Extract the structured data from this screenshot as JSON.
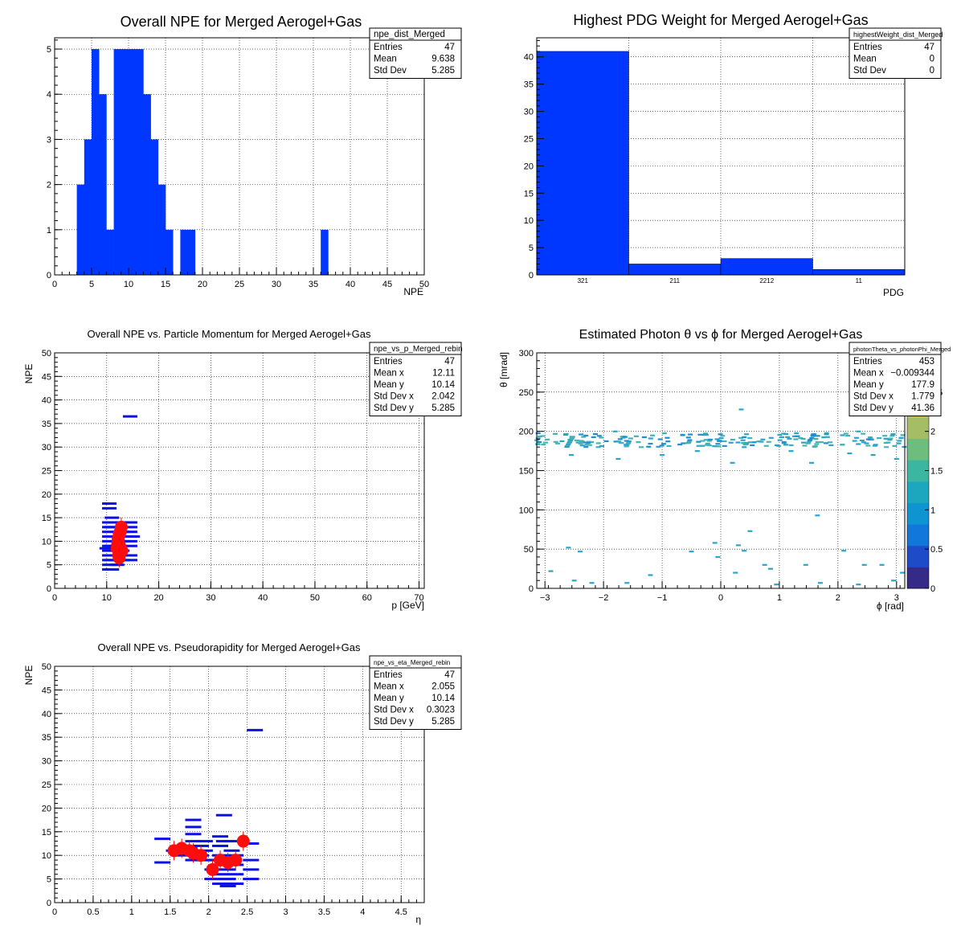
{
  "chart_data": [
    {
      "id": "p1",
      "type": "bar",
      "title": "Overall NPE for Merged Aerogel+Gas",
      "xlabel": "NPE",
      "ylabel": "",
      "xlim": [
        0,
        50
      ],
      "ylim": [
        0,
        5.25
      ],
      "xticks": [
        "0",
        "5",
        "10",
        "15",
        "20",
        "25",
        "30",
        "35",
        "40",
        "45",
        "50"
      ],
      "yticks": [
        "0",
        "1",
        "2",
        "3",
        "4",
        "5"
      ],
      "grid": true,
      "bar_color": "#0037ff",
      "bins": [
        [
          3,
          4,
          2
        ],
        [
          4,
          5,
          3
        ],
        [
          5,
          6,
          5
        ],
        [
          6,
          7,
          4
        ],
        [
          7,
          8,
          1
        ],
        [
          8,
          9,
          5
        ],
        [
          9,
          10,
          5
        ],
        [
          10,
          11,
          5
        ],
        [
          11,
          12,
          5
        ],
        [
          12,
          13,
          4
        ],
        [
          13,
          14,
          3
        ],
        [
          14,
          15,
          2
        ],
        [
          15,
          16,
          1
        ],
        [
          17,
          19,
          1
        ],
        [
          36,
          37,
          1
        ]
      ],
      "stats": {
        "name": "npe_dist_Merged",
        "rows": [
          [
            "Entries",
            "47"
          ],
          [
            "Mean",
            "9.638"
          ],
          [
            "Std Dev",
            "5.285"
          ]
        ]
      }
    },
    {
      "id": "p2",
      "type": "bar",
      "title": "Highest PDG Weight for Merged Aerogel+Gas",
      "xlabel": "PDG",
      "ylabel": "",
      "ylim": [
        0,
        43.5
      ],
      "categories": [
        "321",
        "211",
        "2212",
        "11"
      ],
      "values": [
        41,
        2,
        3,
        1
      ],
      "yticks": [
        "0",
        "5",
        "10",
        "15",
        "20",
        "25",
        "30",
        "35",
        "40"
      ],
      "grid": true,
      "bar_color": "#0037ff",
      "stats": {
        "name": "highestWeight_dist_Merged",
        "rows": [
          [
            "Entries",
            "47"
          ],
          [
            "Mean",
            "0"
          ],
          [
            "Std Dev",
            "0"
          ]
        ]
      }
    },
    {
      "id": "p3",
      "type": "scatter",
      "title": "Overall NPE vs. Particle Momentum for Merged Aerogel+Gas",
      "xlabel": "p [GeV]",
      "ylabel": "NPE",
      "xlim": [
        0,
        71
      ],
      "ylim": [
        0,
        50
      ],
      "xticks": [
        "0",
        "10",
        "20",
        "30",
        "40",
        "50",
        "60",
        "70"
      ],
      "yticks": [
        "0",
        "5",
        "10",
        "15",
        "20",
        "25",
        "30",
        "35",
        "40",
        "45",
        "50"
      ],
      "grid": true,
      "bin_marks": [
        [
          10.5,
          4
        ],
        [
          10.5,
          5
        ],
        [
          10.5,
          6
        ],
        [
          10.5,
          7
        ],
        [
          10.5,
          8
        ],
        [
          10.5,
          9
        ],
        [
          10.5,
          10
        ],
        [
          10.5,
          11
        ],
        [
          10.5,
          12
        ],
        [
          10.5,
          13
        ],
        [
          10.5,
          14
        ],
        [
          10.5,
          17
        ],
        [
          10.5,
          18
        ],
        [
          10,
          8.5
        ],
        [
          11,
          4
        ],
        [
          11,
          6
        ],
        [
          11,
          9
        ],
        [
          11,
          11
        ],
        [
          11,
          13
        ],
        [
          11,
          15
        ],
        [
          12,
          5
        ],
        [
          12,
          7
        ],
        [
          12,
          9
        ],
        [
          12,
          11
        ],
        [
          13,
          6
        ],
        [
          13,
          8
        ],
        [
          13,
          10
        ],
        [
          13,
          12
        ],
        [
          13,
          14
        ],
        [
          14.5,
          6
        ],
        [
          14.5,
          7
        ],
        [
          14.5,
          9
        ],
        [
          14.5,
          10
        ],
        [
          14.5,
          11
        ],
        [
          14.5,
          12
        ],
        [
          14.5,
          13
        ],
        [
          14.5,
          14
        ],
        [
          15,
          11
        ],
        [
          14.5,
          36.5
        ]
      ],
      "profile": [
        [
          12.0,
          8.5
        ],
        [
          12.1,
          9.5
        ],
        [
          12.2,
          10.5
        ],
        [
          12.3,
          7.0
        ],
        [
          12.4,
          11.5
        ],
        [
          12.5,
          9.0
        ],
        [
          12.6,
          12.0
        ],
        [
          12.8,
          13.0
        ],
        [
          12.9,
          8.0
        ],
        [
          12.4,
          6.5
        ]
      ],
      "stats": {
        "name": "npe_vs_p_Merged_rebin",
        "rows": [
          [
            "Entries",
            "47"
          ],
          [
            "Mean x",
            "12.11"
          ],
          [
            "Mean y",
            "10.14"
          ],
          [
            "Std Dev x",
            "2.042"
          ],
          [
            "Std Dev y",
            "5.285"
          ]
        ]
      }
    },
    {
      "id": "p4",
      "type": "heatmap",
      "title": "Estimated Photon θ vs ϕ for Merged Aerogel+Gas",
      "xlabel": "ϕ [rad]",
      "ylabel": "θ [mrad]",
      "xlim": [
        -3.14,
        3.14
      ],
      "ylim": [
        0,
        300
      ],
      "xticks": [
        "−3",
        "−2",
        "−1",
        "0",
        "1",
        "2",
        "3"
      ],
      "xtick_values": [
        -3,
        -2,
        -1,
        0,
        1,
        2,
        3
      ],
      "yticks": [
        "0",
        "50",
        "100",
        "150",
        "200",
        "250",
        "300"
      ],
      "grid": true,
      "z_ticks": [
        "0",
        "0.5",
        "1",
        "1.5",
        "2",
        "2.5"
      ],
      "z_max": 3,
      "cells": [
        [
          -2.6,
          52
        ],
        [
          -2.4,
          47
        ],
        [
          -2.9,
          22
        ],
        [
          -2.5,
          10
        ],
        [
          -2.2,
          7
        ],
        [
          -1.6,
          7
        ],
        [
          -1.2,
          17
        ],
        [
          -0.5,
          47
        ],
        [
          -0.1,
          58
        ],
        [
          -0.05,
          40
        ],
        [
          0.3,
          55
        ],
        [
          0.25,
          20
        ],
        [
          0.75,
          30
        ],
        [
          0.95,
          5
        ],
        [
          0.4,
          48
        ],
        [
          0.5,
          73
        ],
        [
          0.85,
          25
        ],
        [
          1.45,
          30
        ],
        [
          1.65,
          93
        ],
        [
          1.7,
          7
        ],
        [
          2.1,
          48
        ],
        [
          2.45,
          30
        ],
        [
          2.75,
          30
        ],
        [
          2.35,
          5
        ],
        [
          2.95,
          10
        ],
        [
          3.1,
          20
        ],
        [
          1.55,
          160
        ],
        [
          0.4,
          180
        ],
        [
          0.2,
          160
        ],
        [
          -1.75,
          165
        ],
        [
          -2.55,
          170
        ],
        [
          -1.0,
          170
        ],
        [
          2.2,
          172
        ],
        [
          2.6,
          170
        ],
        [
          3.0,
          165
        ],
        [
          0.35,
          228
        ],
        [
          -1.8,
          200
        ],
        [
          2.35,
          200
        ],
        [
          1.2,
          175
        ],
        [
          -0.4,
          175
        ]
      ],
      "band": {
        "theta_center": 189,
        "theta_spread": 9,
        "count": 230
      },
      "stats": {
        "name": "photonTheta_vs_photonPhi_Merged",
        "rows": [
          [
            "Entries",
            "453"
          ],
          [
            "Mean x",
            "−0.009344"
          ],
          [
            "Mean y",
            "177.9"
          ],
          [
            "Std Dev x",
            "1.779"
          ],
          [
            "Std Dev y",
            "41.36"
          ]
        ]
      }
    },
    {
      "id": "p5",
      "type": "scatter",
      "title": "Overall NPE vs. Pseudorapidity for Merged Aerogel+Gas",
      "xlabel": "η",
      "ylabel": "NPE",
      "xlim": [
        0,
        4.8
      ],
      "ylim": [
        0,
        50
      ],
      "xticks": [
        "0",
        "0.5",
        "1",
        "1.5",
        "2",
        "2.5",
        "3",
        "3.5",
        "4",
        "4.5"
      ],
      "yticks": [
        "0",
        "5",
        "10",
        "15",
        "20",
        "25",
        "30",
        "35",
        "40",
        "45",
        "50"
      ],
      "grid": true,
      "bin_marks": [
        [
          1.4,
          8.5
        ],
        [
          1.4,
          13.5
        ],
        [
          1.55,
          11
        ],
        [
          1.65,
          10
        ],
        [
          1.65,
          12
        ],
        [
          1.75,
          11.5
        ],
        [
          1.8,
          9
        ],
        [
          1.8,
          13
        ],
        [
          1.8,
          14.5
        ],
        [
          1.8,
          16
        ],
        [
          1.8,
          17.5
        ],
        [
          1.9,
          10
        ],
        [
          1.9,
          12
        ],
        [
          1.95,
          9
        ],
        [
          1.95,
          11
        ],
        [
          1.95,
          13
        ],
        [
          2.05,
          5
        ],
        [
          2.05,
          7
        ],
        [
          2.05,
          9
        ],
        [
          2.15,
          4
        ],
        [
          2.15,
          6
        ],
        [
          2.15,
          8
        ],
        [
          2.15,
          10
        ],
        [
          2.15,
          12
        ],
        [
          2.15,
          14
        ],
        [
          2.2,
          13
        ],
        [
          2.2,
          18.5
        ],
        [
          2.25,
          3.5
        ],
        [
          2.25,
          5
        ],
        [
          2.25,
          7
        ],
        [
          2.3,
          9
        ],
        [
          2.3,
          11
        ],
        [
          2.3,
          13
        ],
        [
          2.35,
          4
        ],
        [
          2.35,
          6
        ],
        [
          2.35,
          8
        ],
        [
          2.35,
          10
        ],
        [
          2.55,
          5
        ],
        [
          2.55,
          7
        ],
        [
          2.55,
          9
        ],
        [
          2.55,
          12.5
        ],
        [
          2.6,
          36.5
        ]
      ],
      "profile": [
        [
          1.55,
          11.0
        ],
        [
          1.65,
          11.5
        ],
        [
          1.75,
          11.0
        ],
        [
          1.8,
          10.5
        ],
        [
          1.9,
          10.0
        ],
        [
          2.05,
          7.0
        ],
        [
          2.15,
          9.0
        ],
        [
          2.25,
          8.5
        ],
        [
          2.35,
          9.0
        ],
        [
          2.45,
          13.0
        ]
      ],
      "stats": {
        "name": "npe_vs_eta_Merged_rebin",
        "rows": [
          [
            "Entries",
            "47"
          ],
          [
            "Mean x",
            "2.055"
          ],
          [
            "Mean y",
            "10.14"
          ],
          [
            "Std Dev x",
            "0.3023"
          ],
          [
            "Std Dev y",
            "5.285"
          ]
        ]
      }
    }
  ]
}
